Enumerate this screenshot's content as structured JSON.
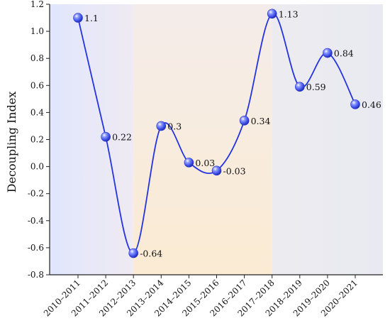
{
  "chart_data": {
    "type": "line",
    "ylabel": "Decoupling Index",
    "xlabel": "",
    "ylim": [
      -0.8,
      1.2
    ],
    "yticks": [
      -0.8,
      -0.6,
      -0.4,
      -0.2,
      0.0,
      0.2,
      0.4,
      0.6,
      0.8,
      1.0,
      1.2
    ],
    "ytick_labels": [
      "-0.8",
      "-0.6",
      "-0.4",
      "-0.2",
      "0.0",
      "0.2",
      "0.4",
      "0.6",
      "0.8",
      "1.0",
      "1.2"
    ],
    "categories": [
      "2010–2011",
      "2011–2012",
      "2012–2013",
      "2013–2014",
      "2014–2015",
      "2015–2016",
      "2016–2017",
      "2017–2018",
      "2018–2019",
      "2019–2020",
      "2020–2021"
    ],
    "values": [
      1.1,
      0.22,
      -0.64,
      0.3,
      0.03,
      -0.03,
      0.34,
      1.13,
      0.59,
      0.84,
      0.46
    ],
    "data_labels": [
      "1.1",
      "0.22",
      "-0.64",
      "0.3",
      "0.03",
      "-0.03",
      "0.34",
      "1.13",
      "0.59",
      "0.84",
      "0.46"
    ],
    "grid": false,
    "line_style": "smooth",
    "background_bands": [
      {
        "from": "2010–2011",
        "to": "2012–2013",
        "color": "#e4e8fb"
      },
      {
        "from": "2012–2013",
        "to": "2017–2018",
        "color": "#f8ecdc"
      },
      {
        "from": "2017–2018",
        "to": "2020–2021",
        "color": "#ecebf1"
      }
    ],
    "colors": {
      "line": "#2433e0",
      "marker": "#4a5cf0",
      "axis": "#222222"
    }
  }
}
